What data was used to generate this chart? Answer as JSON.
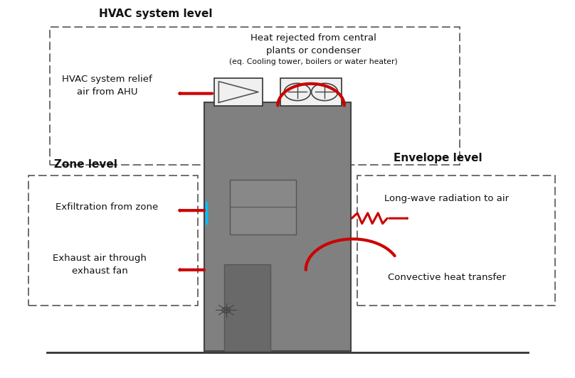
{
  "bg_color": "#ffffff",
  "building_color": "#808080",
  "arrow_color": "#cc0000",
  "text_color": "#000000",
  "dash_box_color": "#555555",
  "title": "HVAC system level",
  "zone_title": "Zone level",
  "envelope_title": "Envelope level",
  "labels": {
    "hvac_relief": "HVAC system relief\nair from AHU",
    "heat_rejected": "Heat rejected from central\nplants or condenser",
    "heat_rejected_sub": "(eq. Cooling tower, boilers or water heater)",
    "exfiltration": "Exfiltration from zone",
    "exhaust": "Exhaust air through\nexhaust fan",
    "longwave": "Long-wave radiation to air",
    "convective": "Convective heat transfer"
  }
}
